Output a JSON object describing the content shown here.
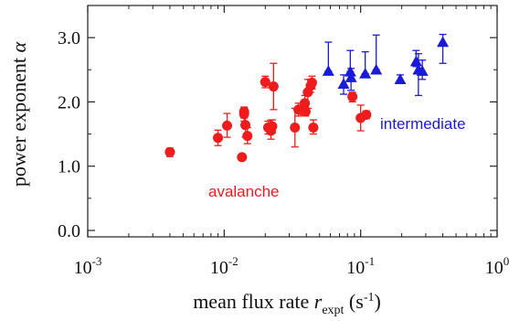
{
  "chart_data": {
    "type": "scatter",
    "xscale": "log",
    "xlim": [
      0.001,
      1
    ],
    "ylim": [
      -0.1,
      3.5
    ],
    "x_ticks": [
      {
        "value": 0.001,
        "base": "10",
        "exp": "-3"
      },
      {
        "value": 0.01,
        "base": "10",
        "exp": "-2"
      },
      {
        "value": 0.1,
        "base": "10",
        "exp": "-1"
      },
      {
        "value": 1,
        "base": "10",
        "exp": "0"
      }
    ],
    "y_ticks": [
      {
        "value": 0.0,
        "label": "0.0"
      },
      {
        "value": 1.0,
        "label": "1.0"
      },
      {
        "value": 2.0,
        "label": "2.0"
      },
      {
        "value": 3.0,
        "label": "3.0"
      }
    ],
    "xlabel": {
      "main": "mean flux rate ",
      "var": "r",
      "sub": "expt",
      "unit_open": " (s",
      "unit_exp": "-1",
      "unit_close": ")"
    },
    "ylabel": {
      "main": "power exponent ",
      "var": "α"
    },
    "grid": false,
    "series": [
      {
        "name": "avalanche",
        "color": "#ee1c1c",
        "marker": "circle",
        "points": [
          {
            "x": 0.004,
            "y": 1.22,
            "lo": 1.15,
            "hi": 1.28
          },
          {
            "x": 0.009,
            "y": 1.44,
            "lo": 1.32,
            "hi": 1.56
          },
          {
            "x": 0.0105,
            "y": 1.63,
            "lo": 1.45,
            "hi": 1.82
          },
          {
            "x": 0.0135,
            "y": 1.14,
            "lo": 1.12,
            "hi": 1.16
          },
          {
            "x": 0.014,
            "y": 1.85,
            "lo": 1.75,
            "hi": 1.92
          },
          {
            "x": 0.014,
            "y": 1.81,
            "lo": 1.7,
            "hi": 1.9
          },
          {
            "x": 0.0143,
            "y": 1.64,
            "lo": 1.45,
            "hi": 1.82
          },
          {
            "x": 0.0148,
            "y": 1.47,
            "lo": 1.35,
            "hi": 1.6
          },
          {
            "x": 0.02,
            "y": 2.31,
            "lo": 2.22,
            "hi": 2.4
          },
          {
            "x": 0.021,
            "y": 1.6,
            "lo": 1.5,
            "hi": 1.7
          },
          {
            "x": 0.022,
            "y": 1.55,
            "lo": 1.42,
            "hi": 1.72
          },
          {
            "x": 0.0225,
            "y": 1.62,
            "lo": 1.52,
            "hi": 1.72
          },
          {
            "x": 0.023,
            "y": 2.24,
            "lo": 1.88,
            "hi": 2.6
          },
          {
            "x": 0.033,
            "y": 1.6,
            "lo": 1.3,
            "hi": 1.9
          },
          {
            "x": 0.035,
            "y": 1.88,
            "lo": 1.78,
            "hi": 1.98
          },
          {
            "x": 0.038,
            "y": 1.9,
            "lo": 1.8,
            "hi": 2.0
          },
          {
            "x": 0.039,
            "y": 1.98,
            "lo": 1.86,
            "hi": 2.1
          },
          {
            "x": 0.0395,
            "y": 1.85,
            "lo": 1.78,
            "hi": 1.92
          },
          {
            "x": 0.041,
            "y": 2.15,
            "lo": 1.9,
            "hi": 2.35
          },
          {
            "x": 0.043,
            "y": 2.25,
            "lo": 2.15,
            "hi": 2.35
          },
          {
            "x": 0.044,
            "y": 2.3,
            "lo": 2.2,
            "hi": 2.4
          },
          {
            "x": 0.045,
            "y": 1.6,
            "lo": 1.5,
            "hi": 1.72
          },
          {
            "x": 0.087,
            "y": 2.08,
            "lo": 2.0,
            "hi": 2.15
          },
          {
            "x": 0.1,
            "y": 1.75,
            "lo": 1.55,
            "hi": 1.95
          },
          {
            "x": 0.11,
            "y": 1.8,
            "lo": 1.74,
            "hi": 1.86
          }
        ]
      },
      {
        "name": "intermediate",
        "color": "#1a1adb",
        "marker": "triangle",
        "points": [
          {
            "x": 0.058,
            "y": 2.48,
            "lo": 2.48,
            "hi": 2.93
          },
          {
            "x": 0.075,
            "y": 2.28,
            "lo": 2.12,
            "hi": 2.42
          },
          {
            "x": 0.084,
            "y": 2.47,
            "lo": 2.47,
            "hi": 2.8
          },
          {
            "x": 0.085,
            "y": 2.38,
            "lo": 2.18,
            "hi": 2.52
          },
          {
            "x": 0.108,
            "y": 2.44,
            "lo": 2.44,
            "hi": 2.78
          },
          {
            "x": 0.13,
            "y": 2.5,
            "lo": 2.5,
            "hi": 3.04
          },
          {
            "x": 0.195,
            "y": 2.35,
            "lo": 2.3,
            "hi": 2.42
          },
          {
            "x": 0.255,
            "y": 2.63,
            "lo": 2.55,
            "hi": 2.8
          },
          {
            "x": 0.265,
            "y": 2.5,
            "lo": 2.1,
            "hi": 2.75
          },
          {
            "x": 0.283,
            "y": 2.48,
            "lo": 2.35,
            "hi": 2.65
          },
          {
            "x": 0.4,
            "y": 2.93,
            "lo": 2.6,
            "hi": 3.05
          }
        ]
      }
    ],
    "annotations": [
      {
        "text": "avalanche",
        "color": "#ee1c1c"
      },
      {
        "text": "intermediate",
        "color": "#1a1adb"
      }
    ]
  }
}
